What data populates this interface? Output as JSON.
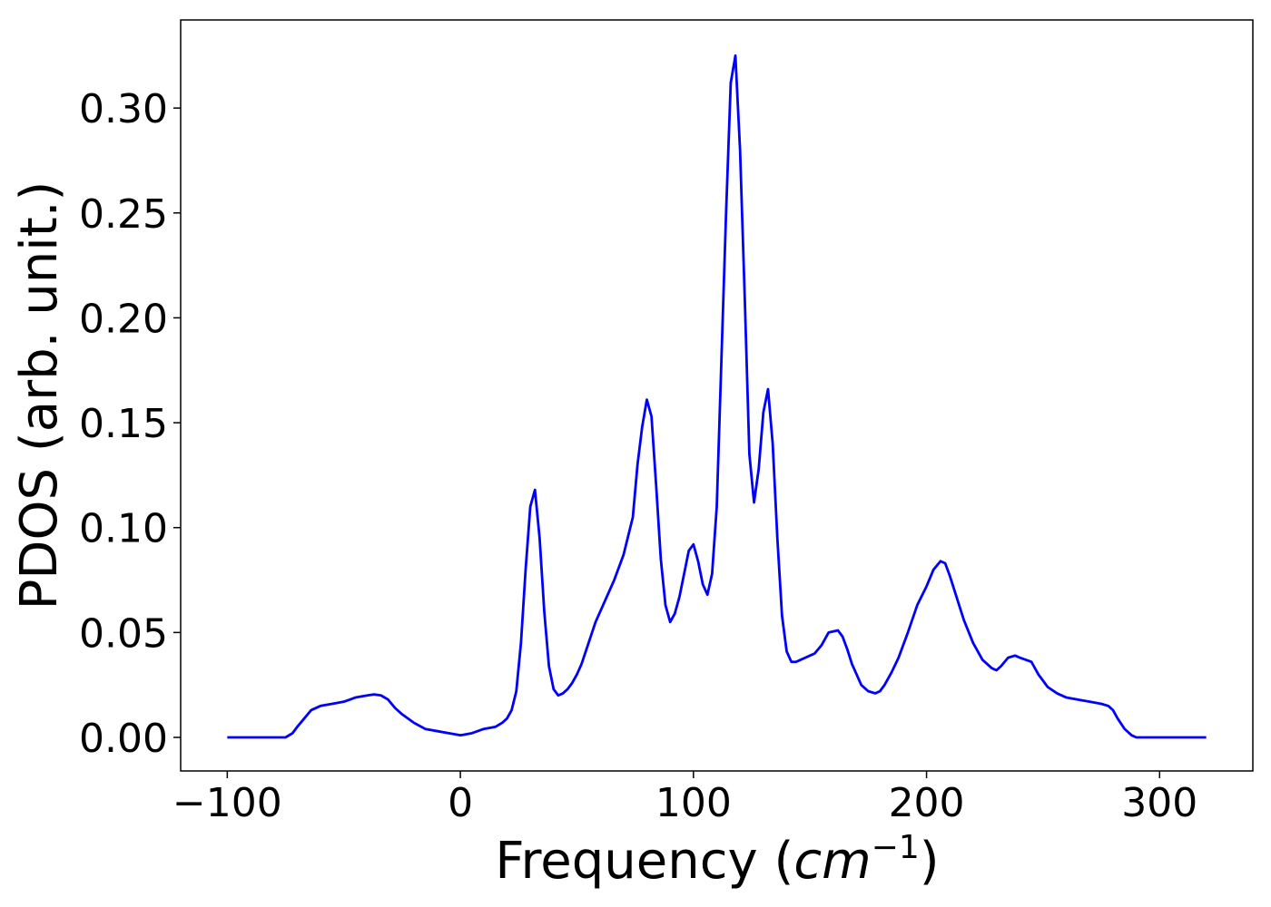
{
  "chart_data": {
    "type": "line",
    "title": "",
    "xlabel": "Frequency (",
    "xlabel_unit": "cm",
    "xlabel_sup": "−1",
    "xlabel_close": ")",
    "ylabel": "PDOS (arb. unit.)",
    "xlim": [
      -120,
      340
    ],
    "ylim": [
      -0.016,
      0.342
    ],
    "xticks": [
      -100,
      0,
      100,
      200,
      300
    ],
    "xtick_labels": [
      "−100",
      "0",
      "100",
      "200",
      "300"
    ],
    "yticks": [
      0.0,
      0.05,
      0.1,
      0.15,
      0.2,
      0.25,
      0.3
    ],
    "ytick_labels": [
      "0.00",
      "0.05",
      "0.10",
      "0.15",
      "0.20",
      "0.25",
      "0.30"
    ],
    "grid": false,
    "series": [
      {
        "color": "#0000ff",
        "x": [
          -100,
          -75,
          -72,
          -70,
          -67,
          -64,
          -60,
          -55,
          -50,
          -45,
          -40,
          -37,
          -34,
          -31,
          -28,
          -25,
          -20,
          -15,
          -10,
          -5,
          0,
          5,
          10,
          15,
          18,
          20,
          22,
          24,
          26,
          28,
          30,
          32,
          34,
          36,
          38,
          40,
          42,
          44,
          46,
          48,
          50,
          52,
          55,
          58,
          62,
          66,
          70,
          74,
          76,
          78,
          80,
          82,
          84,
          86,
          88,
          90,
          92,
          94,
          96,
          98,
          100,
          102,
          104,
          106,
          108,
          110,
          112,
          114,
          116,
          118,
          120,
          122,
          124,
          126,
          128,
          130,
          132,
          134,
          136,
          138,
          140,
          142,
          144,
          146,
          148,
          150,
          152,
          155,
          158,
          162,
          164,
          166,
          168,
          170,
          172,
          175,
          178,
          180,
          182,
          185,
          188,
          192,
          196,
          200,
          203,
          206,
          208,
          210,
          212,
          214,
          216,
          220,
          224,
          228,
          230,
          232,
          235,
          238,
          240,
          245,
          248,
          252,
          256,
          260,
          265,
          270,
          275,
          278,
          280,
          282,
          285,
          288,
          290,
          295,
          300,
          310,
          320
        ],
        "y": [
          0.0,
          0.0,
          0.002,
          0.005,
          0.009,
          0.013,
          0.015,
          0.016,
          0.017,
          0.019,
          0.02,
          0.0205,
          0.02,
          0.018,
          0.014,
          0.011,
          0.007,
          0.004,
          0.003,
          0.002,
          0.001,
          0.002,
          0.004,
          0.005,
          0.007,
          0.009,
          0.013,
          0.022,
          0.045,
          0.08,
          0.11,
          0.118,
          0.095,
          0.06,
          0.034,
          0.023,
          0.02,
          0.021,
          0.023,
          0.026,
          0.03,
          0.035,
          0.045,
          0.055,
          0.065,
          0.075,
          0.087,
          0.105,
          0.13,
          0.148,
          0.161,
          0.153,
          0.12,
          0.085,
          0.063,
          0.055,
          0.059,
          0.067,
          0.078,
          0.089,
          0.092,
          0.084,
          0.073,
          0.068,
          0.078,
          0.11,
          0.18,
          0.25,
          0.312,
          0.325,
          0.28,
          0.21,
          0.135,
          0.112,
          0.128,
          0.155,
          0.166,
          0.14,
          0.095,
          0.058,
          0.041,
          0.036,
          0.036,
          0.037,
          0.038,
          0.039,
          0.04,
          0.044,
          0.05,
          0.051,
          0.048,
          0.042,
          0.035,
          0.03,
          0.025,
          0.022,
          0.021,
          0.022,
          0.025,
          0.031,
          0.038,
          0.05,
          0.063,
          0.072,
          0.08,
          0.084,
          0.083,
          0.077,
          0.07,
          0.063,
          0.056,
          0.045,
          0.037,
          0.033,
          0.032,
          0.034,
          0.038,
          0.039,
          0.038,
          0.036,
          0.03,
          0.024,
          0.021,
          0.019,
          0.018,
          0.017,
          0.016,
          0.015,
          0.013,
          0.009,
          0.004,
          0.001,
          0.0,
          0.0,
          0.0,
          0.0,
          0.0
        ]
      }
    ]
  }
}
